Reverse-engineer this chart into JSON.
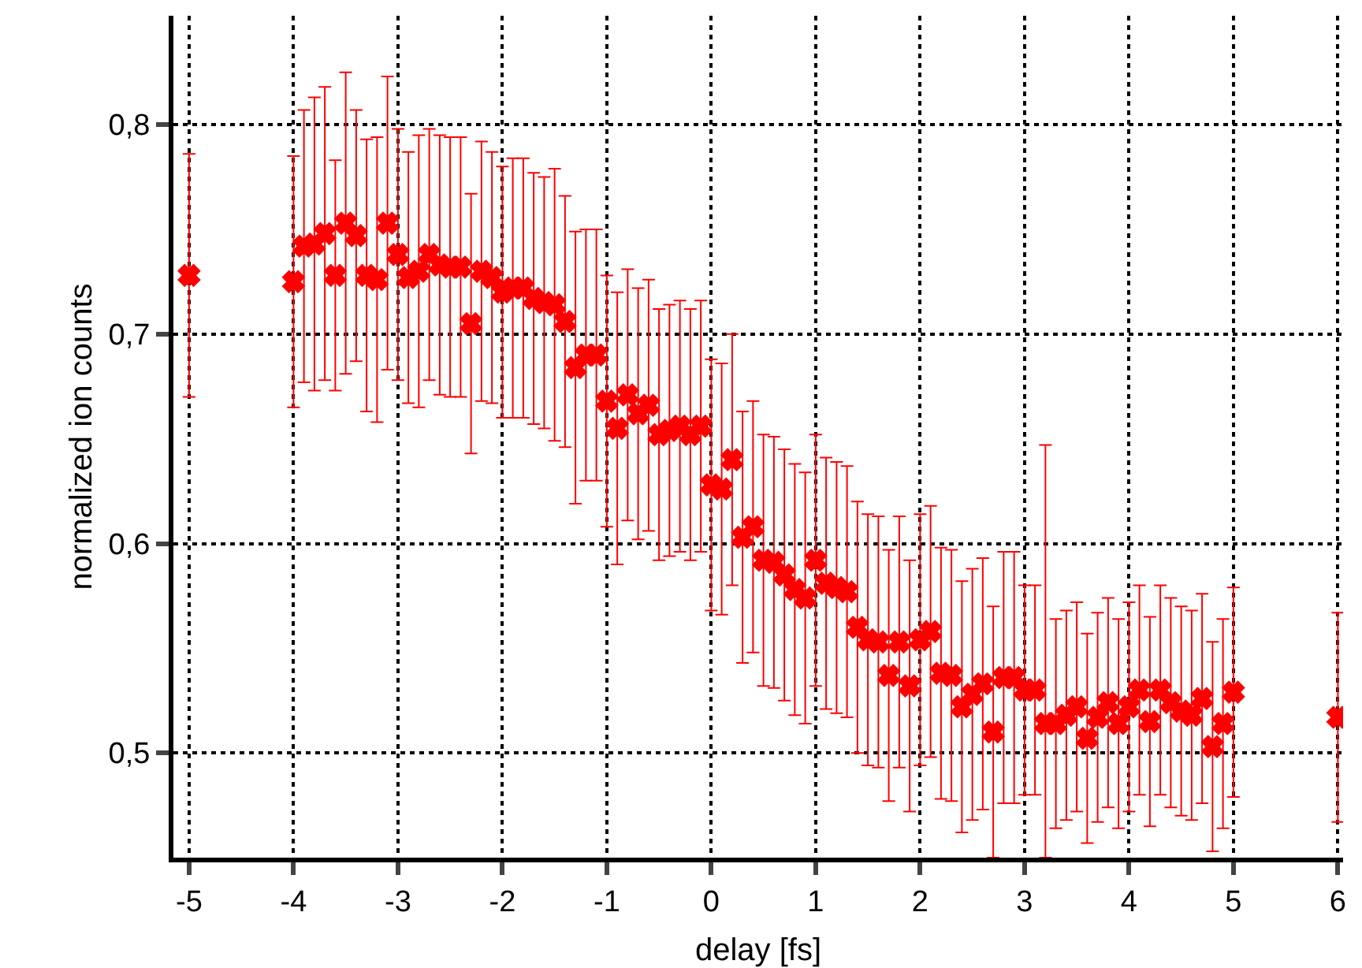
{
  "chart_data": {
    "type": "scatter",
    "xlabel": "delay [fs]",
    "ylabel": "normalized ion counts",
    "xlim": [
      -5.15,
      6.05
    ],
    "xticks": [
      -5,
      -4,
      -3,
      -2,
      -1,
      0,
      1,
      2,
      3,
      4,
      5,
      6
    ],
    "ylim": [
      0.45,
      0.852
    ],
    "yticks": [
      {
        "value": 0.5,
        "label": "0,5"
      },
      {
        "value": 0.6,
        "label": "0,6"
      },
      {
        "value": 0.7,
        "label": "0,7"
      },
      {
        "value": 0.8,
        "label": "0,8"
      }
    ],
    "grid": true,
    "marker": "cross",
    "series": [
      {
        "color": "#ff0000",
        "x": [
          -5,
          -4,
          -3.9,
          -3.8,
          -3.7,
          -3.6,
          -3.5,
          -3.4,
          -3.3,
          -3.2,
          -3.1,
          -3,
          -2.9,
          -2.8,
          -2.7,
          -2.6,
          -2.5,
          -2.4,
          -2.3,
          -2.2,
          -2.1,
          -2,
          -1.9,
          -1.8,
          -1.7,
          -1.6,
          -1.5,
          -1.4,
          -1.3,
          -1.2,
          -1.1,
          -1,
          -0.9,
          -0.8,
          -0.7,
          -0.6,
          -0.5,
          -0.4,
          -0.3,
          -0.2,
          -0.1,
          0,
          0.1,
          0.2,
          0.3,
          0.4,
          0.5,
          0.6,
          0.7,
          0.8,
          0.9,
          1,
          1.1,
          1.2,
          1.3,
          1.4,
          1.5,
          1.6,
          1.7,
          1.8,
          1.9,
          2,
          2.1,
          2.2,
          2.3,
          2.4,
          2.5,
          2.6,
          2.7,
          2.8,
          2.9,
          3,
          3.1,
          3.2,
          3.3,
          3.4,
          3.5,
          3.6,
          3.7,
          3.8,
          3.9,
          4,
          4.1,
          4.2,
          4.3,
          4.4,
          4.5,
          4.6,
          4.7,
          4.8,
          4.9,
          5,
          6
        ],
        "values": [
          0.728,
          0.725,
          0.742,
          0.743,
          0.748,
          0.728,
          0.753,
          0.747,
          0.728,
          0.726,
          0.753,
          0.738,
          0.727,
          0.73,
          0.738,
          0.733,
          0.732,
          0.732,
          0.705,
          0.73,
          0.727,
          0.72,
          0.722,
          0.722,
          0.717,
          0.715,
          0.714,
          0.706,
          0.684,
          0.69,
          0.69,
          0.668,
          0.655,
          0.671,
          0.662,
          0.666,
          0.652,
          0.654,
          0.656,
          0.652,
          0.656,
          0.628,
          0.626,
          0.64,
          0.603,
          0.608,
          0.592,
          0.591,
          0.585,
          0.578,
          0.574,
          0.592,
          0.581,
          0.579,
          0.577,
          0.56,
          0.554,
          0.553,
          0.537,
          0.553,
          0.532,
          0.554,
          0.558,
          0.538,
          0.537,
          0.522,
          0.528,
          0.533,
          0.51,
          0.536,
          0.536,
          0.53,
          0.53,
          0.514,
          0.514,
          0.518,
          0.522,
          0.507,
          0.517,
          0.524,
          0.514,
          0.522,
          0.53,
          0.515,
          0.53,
          0.524,
          0.52,
          0.518,
          0.526,
          0.503,
          0.514,
          0.529,
          0.517
        ],
        "errors": [
          0.058,
          0.06,
          0.065,
          0.07,
          0.07,
          0.055,
          0.072,
          0.06,
          0.065,
          0.068,
          0.07,
          0.06,
          0.06,
          0.065,
          0.06,
          0.062,
          0.062,
          0.062,
          0.062,
          0.062,
          0.06,
          0.06,
          0.062,
          0.062,
          0.06,
          0.06,
          0.065,
          0.06,
          0.065,
          0.06,
          0.06,
          0.06,
          0.065,
          0.06,
          0.06,
          0.06,
          0.06,
          0.06,
          0.06,
          0.06,
          0.06,
          0.06,
          0.06,
          0.06,
          0.06,
          0.06,
          0.06,
          0.06,
          0.06,
          0.06,
          0.06,
          0.06,
          0.06,
          0.06,
          0.06,
          0.06,
          0.06,
          0.06,
          0.06,
          0.06,
          0.06,
          0.06,
          0.06,
          0.06,
          0.06,
          0.06,
          0.06,
          0.06,
          0.06,
          0.06,
          0.06,
          0.05,
          0.05,
          [
            0.45,
            0.647
          ],
          0.05,
          0.05,
          0.05,
          0.05,
          0.05,
          0.05,
          0.05,
          0.05,
          0.05,
          0.05,
          0.05,
          0.05,
          0.05,
          0.05,
          0.05,
          0.05,
          0.05,
          0.05,
          0.05
        ]
      }
    ]
  }
}
